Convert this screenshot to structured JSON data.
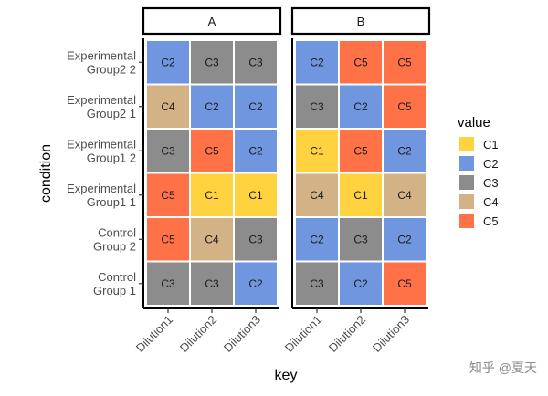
{
  "chart_data": {
    "type": "heatmap",
    "facets": [
      "A",
      "B"
    ],
    "x": [
      "Dilution1",
      "Dilution2",
      "Dilution3"
    ],
    "y": [
      "Experimental\nGroup2 2",
      "Experimental\nGroup2 1",
      "Experimental\nGroup1 2",
      "Experimental\nGroup1 1",
      "Control\nGroup 2",
      "Control\nGroup 1"
    ],
    "values": {
      "A": [
        [
          "C2",
          "C3",
          "C3"
        ],
        [
          "C4",
          "C2",
          "C2"
        ],
        [
          "C3",
          "C5",
          "C2"
        ],
        [
          "C5",
          "C1",
          "C1"
        ],
        [
          "C5",
          "C4",
          "C3"
        ],
        [
          "C3",
          "C3",
          "C2"
        ]
      ],
      "B": [
        [
          "C2",
          "C5",
          "C5"
        ],
        [
          "C3",
          "C2",
          "C5"
        ],
        [
          "C1",
          "C5",
          "C2"
        ],
        [
          "C4",
          "C1",
          "C4"
        ],
        [
          "C2",
          "C3",
          "C2"
        ],
        [
          "C3",
          "C2",
          "C5"
        ]
      ]
    },
    "xlabel": "key",
    "ylabel": "condition",
    "legend": {
      "title": "value",
      "position": "right",
      "items": [
        {
          "label": "C1",
          "color": "#FFD23F"
        },
        {
          "label": "C2",
          "color": "#7096E0"
        },
        {
          "label": "C3",
          "color": "#8C8C8C"
        },
        {
          "label": "C4",
          "color": "#D3B286"
        },
        {
          "label": "C5",
          "color": "#FF7247"
        }
      ]
    }
  },
  "watermark": "知乎 @夏天"
}
